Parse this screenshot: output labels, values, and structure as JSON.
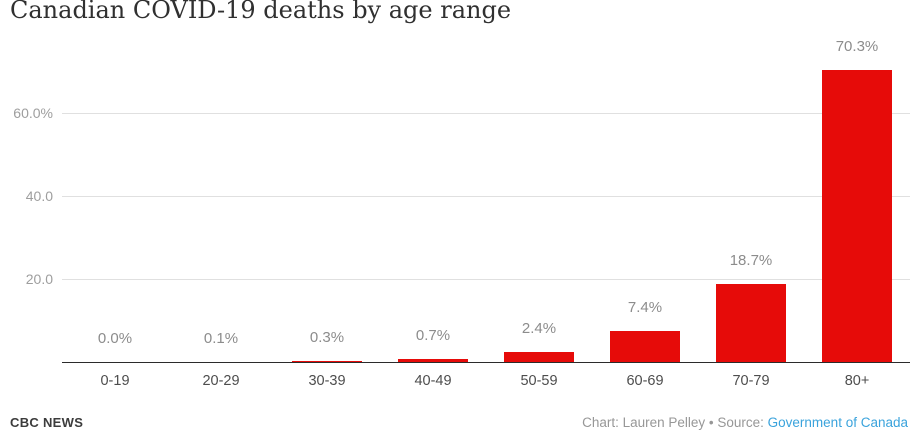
{
  "header": {
    "title": "Canadian COVID-19 deaths by age range"
  },
  "footer": {
    "brand": "CBC NEWS",
    "credit_prefix": "Chart: Lauren Pelley • Source: ",
    "source_link": "Government of Canada"
  },
  "colors": {
    "bar": "#e60b09",
    "link": "#3aa3dc",
    "gridline": "#e0e0e0",
    "axis": "#2b2b2b",
    "value_label": "#8c8c8c",
    "x_label": "#4d4d4d",
    "y_label": "#9e9e9e"
  },
  "chart_data": {
    "type": "bar",
    "title": "Canadian COVID-19 deaths by age range",
    "categories": [
      "0-19",
      "20-29",
      "30-39",
      "40-49",
      "50-59",
      "60-69",
      "70-79",
      "80+"
    ],
    "values": [
      0.0,
      0.1,
      0.3,
      0.7,
      2.4,
      7.4,
      18.7,
      70.3
    ],
    "value_labels": [
      "0.0%",
      "0.1%",
      "0.3%",
      "0.7%",
      "2.4%",
      "7.4%",
      "18.7%",
      "70.3%"
    ],
    "xlabel": "",
    "ylabel": "",
    "ylim": [
      0,
      70.3
    ],
    "y_ticks": [
      {
        "value": 20,
        "label": "20.0"
      },
      {
        "value": 40,
        "label": "40.0"
      },
      {
        "value": 60,
        "label": "60.0%"
      }
    ],
    "grid": true,
    "legend": false
  }
}
